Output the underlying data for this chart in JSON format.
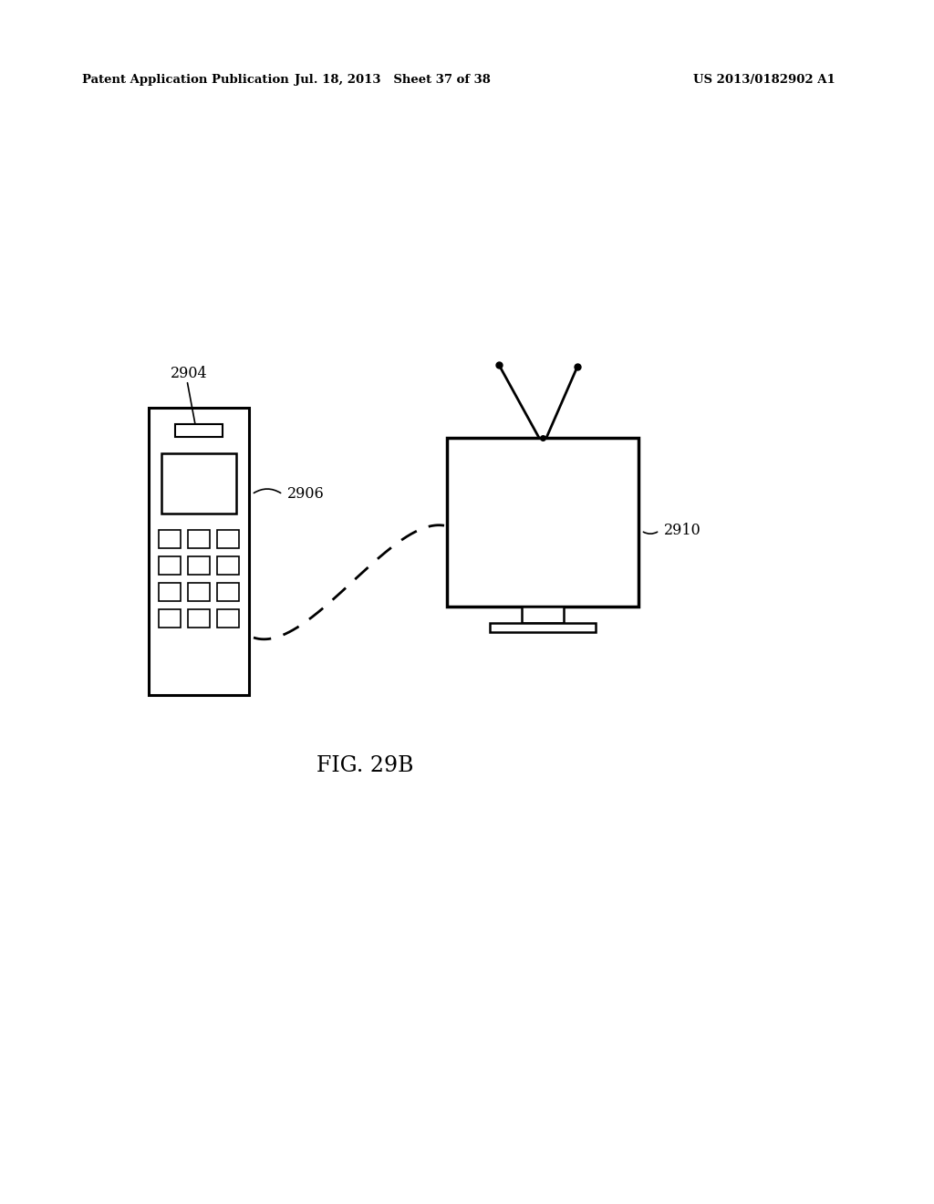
{
  "background_color": "#ffffff",
  "header_left": "Patent Application Publication",
  "header_mid": "Jul. 18, 2013   Sheet 37 of 38",
  "header_right": "US 2013/0182902 A1",
  "fig_label": "FIG. 29B",
  "label_2904": "2904",
  "label_2906": "2906",
  "label_2910": "2910",
  "line_color": "#000000"
}
